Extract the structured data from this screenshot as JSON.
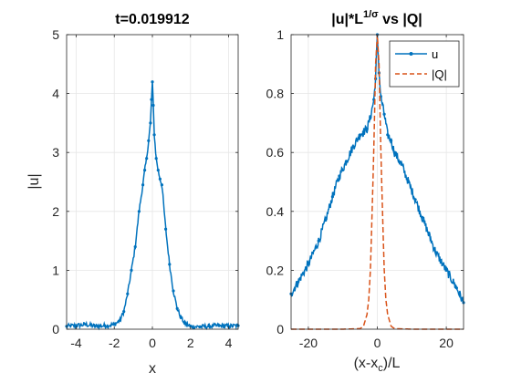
{
  "colors": {
    "series_blue": "#0072BD",
    "series_orange": "#D95319",
    "grid": "#e6e6e6",
    "axis": "#262626"
  },
  "chart_data": [
    {
      "type": "line",
      "title": "t=0.019912",
      "xlabel": "x",
      "ylabel": "|u|",
      "xlim": [
        -4.5,
        4.5
      ],
      "ylim": [
        0,
        5
      ],
      "xticks": [
        -4,
        -2,
        0,
        2,
        4
      ],
      "yticks": [
        0,
        1,
        2,
        3,
        4,
        5
      ],
      "grid": true,
      "series": [
        {
          "color": "#0072BD",
          "marker": "dot",
          "x": [
            -4.5,
            -4.0,
            -3.5,
            -3.0,
            -2.5,
            -2.0,
            -1.7,
            -1.5,
            -1.3,
            -1.1,
            -0.9,
            -0.7,
            -0.5,
            -0.4,
            -0.3,
            -0.2,
            -0.1,
            -0.05,
            0.0,
            0.05,
            0.1,
            0.2,
            0.3,
            0.4,
            0.5,
            0.7,
            0.9,
            1.1,
            1.3,
            1.5,
            1.7,
            2.0,
            2.5,
            3.0,
            3.5,
            4.0,
            4.5
          ],
          "y": [
            0.05,
            0.06,
            0.08,
            0.05,
            0.06,
            0.08,
            0.15,
            0.3,
            0.6,
            1.0,
            1.4,
            2.0,
            2.45,
            2.7,
            2.9,
            3.2,
            3.5,
            3.9,
            4.2,
            3.8,
            3.3,
            2.9,
            2.7,
            2.55,
            2.45,
            1.7,
            1.1,
            0.65,
            0.35,
            0.2,
            0.1,
            0.05,
            0.04,
            0.05,
            0.06,
            0.05,
            0.06
          ]
        }
      ]
    },
    {
      "type": "line",
      "title_main": "|u|*L",
      "title_sup": "1/σ",
      "title_tail": " vs |Q|",
      "xlabel_main": "(x-x",
      "xlabel_sub": "c",
      "xlabel_tail": ")/L",
      "ylabel": "",
      "xlim": [
        -25,
        25
      ],
      "ylim": [
        0,
        1
      ],
      "xticks": [
        -20,
        0,
        20
      ],
      "yticks": [
        0,
        0.2,
        0.4,
        0.6,
        0.8,
        1
      ],
      "ytick_labels": [
        "0",
        "0.2",
        "0.4",
        "0.6",
        "0.8",
        "1"
      ],
      "grid": true,
      "legend": {
        "placement": "top-right",
        "entries": [
          "u",
          "|Q|"
        ]
      },
      "series": [
        {
          "name": "u",
          "color": "#0072BD",
          "line": "solid",
          "marker": "dot",
          "x": [
            -25,
            -23,
            -20,
            -17,
            -15,
            -13,
            -11,
            -9,
            -7,
            -5,
            -4,
            -3,
            -2,
            -1,
            -0.5,
            0,
            0.5,
            1,
            2,
            3,
            4,
            5,
            7,
            9,
            11,
            13,
            15,
            17,
            20,
            23,
            25
          ],
          "y": [
            0.12,
            0.16,
            0.22,
            0.3,
            0.37,
            0.45,
            0.52,
            0.57,
            0.62,
            0.66,
            0.67,
            0.68,
            0.72,
            0.78,
            0.85,
            1.0,
            0.87,
            0.79,
            0.73,
            0.66,
            0.64,
            0.6,
            0.56,
            0.5,
            0.44,
            0.38,
            0.32,
            0.26,
            0.2,
            0.14,
            0.09
          ]
        },
        {
          "name": "|Q|",
          "color": "#D95319",
          "line": "dashed",
          "x": [
            -25,
            -10,
            -5,
            -4,
            -3,
            -2.5,
            -2,
            -1.5,
            -1,
            -0.5,
            0,
            0.5,
            1,
            1.5,
            2,
            2.5,
            3,
            4,
            5,
            10,
            25
          ],
          "y": [
            0,
            0,
            0.002,
            0.01,
            0.05,
            0.1,
            0.2,
            0.4,
            0.62,
            0.9,
            1.0,
            0.9,
            0.62,
            0.4,
            0.2,
            0.1,
            0.05,
            0.01,
            0.002,
            0,
            0
          ]
        }
      ]
    }
  ]
}
